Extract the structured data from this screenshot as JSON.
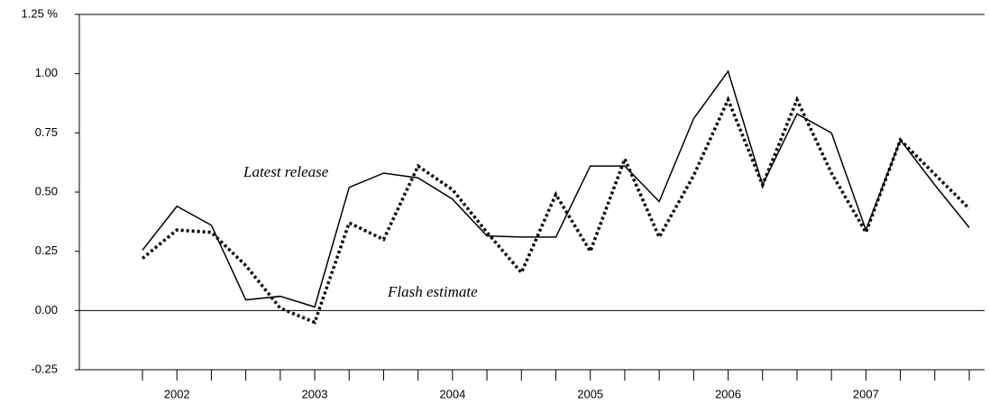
{
  "chart_data": {
    "type": "line",
    "categories": [
      null,
      "2002",
      null,
      null,
      null,
      "2003",
      null,
      null,
      null,
      "2004",
      null,
      null,
      null,
      "2005",
      null,
      null,
      null,
      "2006",
      null,
      null,
      null,
      "2007",
      null,
      null,
      null
    ],
    "series": [
      {
        "name": "Latest release",
        "color": "#000000",
        "dash": false,
        "values": [
          0.255,
          0.44,
          0.36,
          0.045,
          0.06,
          0.015,
          0.52,
          0.58,
          0.56,
          0.47,
          0.315,
          0.31,
          0.31,
          0.61,
          0.61,
          0.46,
          0.81,
          1.01,
          0.53,
          0.83,
          0.75,
          0.34,
          0.72,
          0.53,
          0.35
        ]
      },
      {
        "name": "Flash estimate",
        "color": "#000000",
        "dash": true,
        "values": [
          0.22,
          0.34,
          0.33,
          0.19,
          0.01,
          -0.05,
          0.37,
          0.3,
          0.61,
          0.51,
          0.33,
          0.16,
          0.49,
          0.25,
          0.64,
          0.31,
          0.57,
          0.89,
          0.53,
          0.89,
          0.58,
          0.33,
          0.72,
          0.575,
          0.43
        ]
      }
    ],
    "ylim": [
      -0.25,
      1.25
    ],
    "yticks": [
      -0.25,
      {
        "value": 0,
        "label": "0.00"
      },
      0.25,
      {
        "value": 0.5,
        "label": "0.50"
      },
      0.75,
      {
        "value": 1,
        "label": "1.00"
      },
      {
        "value": 1.25,
        "label": "1.25 %"
      }
    ],
    "grid": false
  }
}
